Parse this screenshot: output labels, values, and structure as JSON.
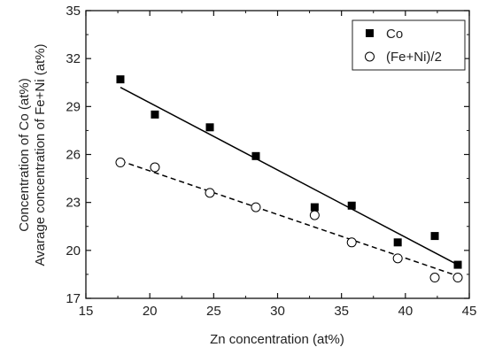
{
  "chart_data": {
    "type": "scatter",
    "title": "",
    "xlabel": "Zn concentration (at%)",
    "ylabel_lines": [
      "Avarage concentration of Fe+Ni (at%)",
      "Concentration of Co (at%)"
    ],
    "xlim": [
      15,
      45
    ],
    "ylim": [
      17,
      35
    ],
    "xticks": [
      15,
      20,
      25,
      30,
      35,
      40,
      45
    ],
    "yticks": [
      17,
      20,
      23,
      26,
      29,
      32,
      35
    ],
    "grid": false,
    "legend_position": "top-right",
    "series": [
      {
        "name": "Co",
        "marker": "filled-square",
        "color": "#000000",
        "x": [
          17.7,
          20.4,
          24.7,
          28.3,
          32.9,
          35.8,
          39.4,
          42.3,
          44.1
        ],
        "y": [
          30.7,
          28.5,
          27.7,
          25.9,
          22.7,
          22.8,
          20.5,
          20.9,
          19.1
        ],
        "fit": {
          "style": "solid",
          "x": [
            17.7,
            44.1
          ],
          "y": [
            30.2,
            19.1
          ]
        }
      },
      {
        "name": "(Fe+Ni)/2",
        "marker": "open-circle",
        "color": "#000000",
        "x": [
          17.7,
          20.4,
          24.7,
          28.3,
          32.9,
          35.8,
          39.4,
          42.3,
          44.1
        ],
        "y": [
          25.5,
          25.2,
          23.6,
          22.7,
          22.2,
          20.5,
          19.5,
          18.3,
          18.3
        ],
        "fit": {
          "style": "dashed",
          "x": [
            17.7,
            44.1
          ],
          "y": [
            25.6,
            18.4
          ]
        }
      }
    ]
  }
}
